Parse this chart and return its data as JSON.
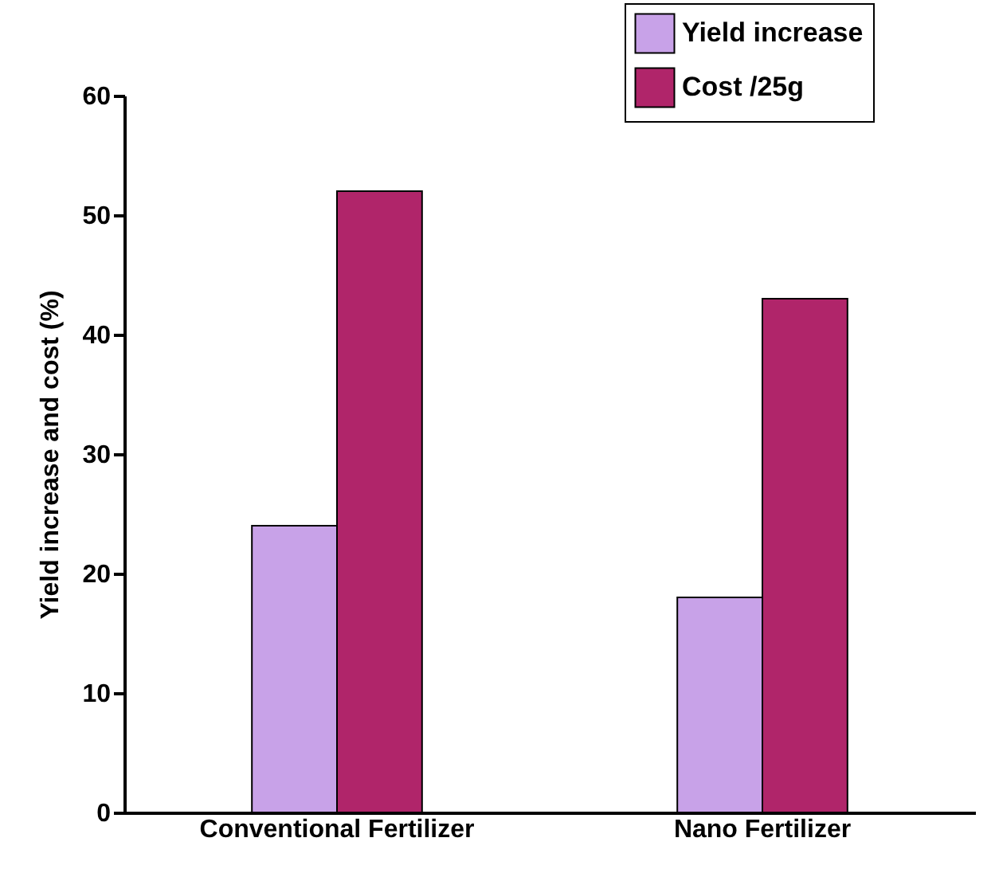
{
  "chart_data": {
    "type": "bar",
    "ylabel": "Yield increase and cost (%)",
    "categories": [
      "Conventional Fertilizer",
      "Nano Fertilizer"
    ],
    "series": [
      {
        "name": "Yield increase",
        "color": "#c8a2e8",
        "values": [
          24,
          18
        ]
      },
      {
        "name": "Cost /25g",
        "color": "#b0256a",
        "values": [
          52,
          43
        ]
      }
    ],
    "ylim": [
      0,
      60
    ],
    "yticks": [
      0,
      10,
      20,
      30,
      40,
      50,
      60
    ],
    "grid": false,
    "legend": "top right"
  }
}
